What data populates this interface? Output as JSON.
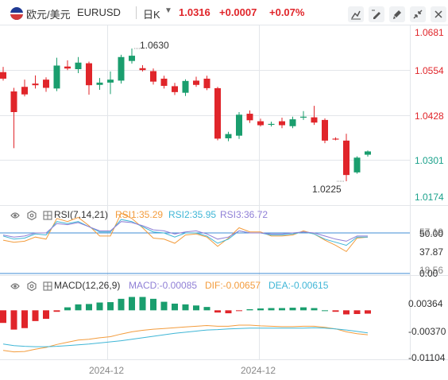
{
  "header": {
    "pair_name": "欧元/美元",
    "pair_code": "EURUSD",
    "period": "日K",
    "price": "1.0316",
    "change": "+0.0007",
    "change_pct": "+0.07%",
    "tools": [
      "draw-line-icon",
      "pen-icon",
      "brush-icon",
      "collapse-icon",
      "close-icon"
    ]
  },
  "price_axis": {
    "labels": [
      "1.0681",
      "1.0554",
      "1.0428",
      "1.0301",
      "1.0174"
    ],
    "high_annotation": "1.0630",
    "low_annotation": "1.0225"
  },
  "rsi": {
    "name": "RSI(7,14,21)",
    "rsi1": "RSI1:35.29",
    "rsi2": "RSI2:35.95",
    "rsi3": "RSI3:36.72",
    "axis": [
      "57.19",
      "50.00",
      "37.87",
      "18.56",
      "0.00"
    ],
    "colors": {
      "rsi1": "#f39c3d",
      "rsi2": "#3fb6d6",
      "rsi3": "#8f7fd6"
    }
  },
  "macd": {
    "name": "MACD(12,26,9)",
    "macd": "MACD:-0.00085",
    "dif": "DIF:-0.00657",
    "dea": "DEA:-0.00615",
    "axis": [
      "0.00364",
      "-0.00370",
      "-0.01104"
    ],
    "colors": {
      "macd": "#8f7fd6",
      "dif": "#f39c3d",
      "dea": "#3fb6d6"
    }
  },
  "x_axis": {
    "labels": [
      "2024-12",
      "2024-12"
    ]
  },
  "colors": {
    "up": "#1a9e6e",
    "down": "#e0252a"
  },
  "chart_data": [
    {
      "type": "candlestick",
      "title": "EURUSD",
      "ylim": [
        1.0174,
        1.0681
      ],
      "candles": [
        {
          "o": 1.0558,
          "h": 1.0574,
          "l": 1.0532,
          "c": 1.0538
        },
        {
          "o": 1.0499,
          "h": 1.051,
          "l": 1.0326,
          "c": 1.0436
        },
        {
          "o": 1.0513,
          "h": 1.0535,
          "l": 1.0484,
          "c": 1.049
        },
        {
          "o": 1.0523,
          "h": 1.0548,
          "l": 1.0508,
          "c": 1.0518
        },
        {
          "o": 1.0535,
          "h": 1.0542,
          "l": 1.0498,
          "c": 1.051
        },
        {
          "o": 1.0508,
          "h": 1.0602,
          "l": 1.05,
          "c": 1.0578
        },
        {
          "o": 1.0575,
          "h": 1.0594,
          "l": 1.0564,
          "c": 1.0569
        },
        {
          "o": 1.0567,
          "h": 1.0604,
          "l": 1.0555,
          "c": 1.0587
        },
        {
          "o": 1.0585,
          "h": 1.059,
          "l": 1.0489,
          "c": 1.0518
        },
        {
          "o": 1.0519,
          "h": 1.054,
          "l": 1.0504,
          "c": 1.0526
        },
        {
          "o": 1.0526,
          "h": 1.056,
          "l": 1.0491,
          "c": 1.0535
        },
        {
          "o": 1.0532,
          "h": 1.0611,
          "l": 1.0523,
          "c": 1.0604
        },
        {
          "o": 1.0592,
          "h": 1.063,
          "l": 1.0584,
          "c": 1.0608
        },
        {
          "o": 1.057,
          "h": 1.0579,
          "l": 1.056,
          "c": 1.0564
        },
        {
          "o": 1.0561,
          "h": 1.0569,
          "l": 1.052,
          "c": 1.0529
        },
        {
          "o": 1.0538,
          "h": 1.0547,
          "l": 1.0508,
          "c": 1.0516
        },
        {
          "o": 1.0515,
          "h": 1.0525,
          "l": 1.0488,
          "c": 1.0497
        },
        {
          "o": 1.0495,
          "h": 1.0536,
          "l": 1.0485,
          "c": 1.0531
        },
        {
          "o": 1.0532,
          "h": 1.0544,
          "l": 1.0513,
          "c": 1.0519
        },
        {
          "o": 1.0538,
          "h": 1.0547,
          "l": 1.0503,
          "c": 1.0509
        },
        {
          "o": 1.0509,
          "h": 1.0513,
          "l": 1.035,
          "c": 1.0355
        },
        {
          "o": 1.0356,
          "h": 1.0376,
          "l": 1.0347,
          "c": 1.0369
        },
        {
          "o": 1.0364,
          "h": 1.0436,
          "l": 1.0354,
          "c": 1.0428
        },
        {
          "o": 1.0431,
          "h": 1.0441,
          "l": 1.0403,
          "c": 1.0411
        },
        {
          "o": 1.0408,
          "h": 1.0416,
          "l": 1.0392,
          "c": 1.0396
        },
        {
          "o": 1.04,
          "h": 1.0407,
          "l": 1.0392,
          "c": 1.04
        },
        {
          "o": 1.0408,
          "h": 1.0419,
          "l": 1.0387,
          "c": 1.0396
        },
        {
          "o": 1.0393,
          "h": 1.0422,
          "l": 1.0387,
          "c": 1.0414
        },
        {
          "o": 1.0422,
          "h": 1.0439,
          "l": 1.0412,
          "c": 1.0422
        },
        {
          "o": 1.042,
          "h": 1.0455,
          "l": 1.0397,
          "c": 1.0404
        },
        {
          "o": 1.0412,
          "h": 1.0417,
          "l": 1.0341,
          "c": 1.0349
        },
        {
          "o": 1.0355,
          "h": 1.0359,
          "l": 1.035,
          "c": 1.0353
        },
        {
          "o": 1.0349,
          "h": 1.037,
          "l": 1.0225,
          "c": 1.0244
        },
        {
          "o": 1.0252,
          "h": 1.0301,
          "l": 1.0248,
          "c": 1.0297
        },
        {
          "o": 1.0306,
          "h": 1.0319,
          "l": 1.03,
          "c": 1.0316
        }
      ]
    },
    {
      "type": "line",
      "title": "RSI(7,14,21)",
      "ylim": [
        0,
        60
      ],
      "series": [
        {
          "name": "RSI1",
          "values": [
            33,
            31,
            32,
            36,
            34,
            54,
            51,
            55,
            47,
            37,
            37,
            59,
            54,
            45,
            35,
            34,
            30,
            38,
            39,
            36,
            27,
            35,
            45,
            41,
            41,
            37,
            37,
            38,
            42,
            39,
            33,
            28,
            22,
            35,
            36
          ]
        },
        {
          "name": "RSI2",
          "values": [
            37,
            34,
            35,
            39,
            38,
            51,
            49,
            51,
            46,
            41,
            41,
            53,
            51,
            46,
            41,
            40,
            36,
            40,
            40,
            37,
            30,
            34,
            42,
            40,
            40,
            38,
            38,
            39,
            41,
            39,
            34,
            31,
            28,
            36,
            36
          ]
        },
        {
          "name": "RSI3",
          "values": [
            38,
            36,
            37,
            40,
            40,
            49,
            48,
            50,
            46,
            42,
            42,
            51,
            50,
            47,
            43,
            42,
            39,
            41,
            42,
            39,
            34,
            36,
            42,
            40,
            40,
            39,
            39,
            40,
            41,
            40,
            37,
            34,
            32,
            37,
            37
          ]
        }
      ]
    },
    {
      "type": "bar",
      "title": "MACD(12,26,9)",
      "ylim": [
        -0.01104,
        0.00364
      ],
      "series": [
        {
          "name": "MACD",
          "values": [
            -0.0034,
            -0.0052,
            -0.0048,
            -0.0029,
            -0.0023,
            -0.0004,
            0.0008,
            0.0016,
            0.0017,
            0.0021,
            0.0022,
            0.0031,
            0.0036,
            0.0036,
            0.0031,
            0.0023,
            0.0018,
            0.0016,
            0.0013,
            0.0009,
            -0.0006,
            -0.0008,
            -0.0001,
            0.0003,
            0.0005,
            0.0006,
            0.0006,
            0.0007,
            0.0008,
            0.0006,
            0.0,
            -0.0004,
            -0.0011,
            -0.001,
            -0.0009
          ]
        },
        {
          "name": "DIF",
          "values": [
            -0.0108,
            -0.0112,
            -0.0111,
            -0.0105,
            -0.01,
            -0.0092,
            -0.0086,
            -0.008,
            -0.0078,
            -0.0074,
            -0.0071,
            -0.0064,
            -0.0058,
            -0.0054,
            -0.0051,
            -0.0049,
            -0.0047,
            -0.0045,
            -0.0043,
            -0.0041,
            -0.0043,
            -0.0043,
            -0.004,
            -0.004,
            -0.0042,
            -0.0043,
            -0.0044,
            -0.0044,
            -0.0043,
            -0.0043,
            -0.0046,
            -0.005,
            -0.0058,
            -0.0063,
            -0.0066
          ]
        },
        {
          "name": "DEA",
          "values": [
            -0.0091,
            -0.0095,
            -0.0097,
            -0.0098,
            -0.0098,
            -0.0097,
            -0.0095,
            -0.0093,
            -0.0091,
            -0.0088,
            -0.0085,
            -0.0082,
            -0.0078,
            -0.0074,
            -0.007,
            -0.0066,
            -0.0062,
            -0.0059,
            -0.0056,
            -0.0053,
            -0.0052,
            -0.005,
            -0.0049,
            -0.0048,
            -0.0048,
            -0.0048,
            -0.0048,
            -0.0048,
            -0.0048,
            -0.0047,
            -0.0048,
            -0.005,
            -0.0053,
            -0.0057,
            -0.0061
          ]
        }
      ]
    }
  ]
}
